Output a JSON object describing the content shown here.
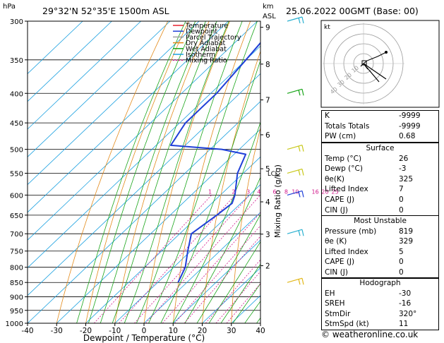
{
  "header": {
    "location": "29°32'N  52°35'E  1500m  ASL",
    "hpa_label": "hPa",
    "km_label": "km",
    "asl_label": "ASL",
    "datetime": "25.06.2022  00GMT  (Base: 00)"
  },
  "chart_data": {
    "type": "line",
    "title": "",
    "xlabel": "Dewpoint / Temperature (°C)",
    "ylabel": "hPa",
    "right_label": "Mixing Ratio (g/kg)",
    "x_ticks": [
      "-40",
      "-30",
      "-20",
      "-10",
      "0",
      "10",
      "20",
      "30",
      "40"
    ],
    "pressure_levels": [
      "300",
      "350",
      "400",
      "450",
      "500",
      "550",
      "600",
      "650",
      "700",
      "750",
      "800",
      "850",
      "900",
      "950",
      "1000"
    ],
    "height_km_labels": [
      "9",
      "8",
      "7",
      "6",
      "5",
      "4",
      "3",
      "2"
    ],
    "lcl_label": "LCL",
    "mixing_ratio_labels": [
      "1",
      "2",
      "3",
      "4",
      "6",
      "8",
      "10",
      "16",
      "20",
      "25"
    ],
    "legend": [
      {
        "name": "Temperature",
        "color": "#e8212e"
      },
      {
        "name": "Dewpoint",
        "color": "#1f3fd8"
      },
      {
        "name": "Parcel Trajectory",
        "color": "#a0a0a0"
      },
      {
        "name": "Dry Adiabat",
        "color": "#e28a1a"
      },
      {
        "name": "Wet Adiabat",
        "color": "#1aa51a"
      },
      {
        "name": "Isotherm",
        "color": "#1aa0e0"
      },
      {
        "name": "Mixing Ratio",
        "color": "#d1158a"
      }
    ],
    "series": [
      {
        "name": "Temperature",
        "color": "#e8212e",
        "points": [
          [
            820,
            33.5
          ],
          [
            850,
            32
          ],
          [
            800,
            30
          ],
          [
            750,
            25.5
          ],
          [
            700,
            21
          ],
          [
            650,
            17
          ],
          [
            600,
            12.5
          ],
          [
            550,
            8
          ],
          [
            500,
            3
          ],
          [
            475,
            6
          ],
          [
            450,
            4
          ],
          [
            425,
            0
          ],
          [
            400,
            -2.5
          ],
          [
            375,
            -6
          ],
          [
            360,
            -7
          ]
        ]
      },
      {
        "name": "Dewpoint",
        "color": "#1f3fd8",
        "points": [
          [
            850,
            -3
          ],
          [
            800,
            -6
          ],
          [
            750,
            -11
          ],
          [
            700,
            -16
          ],
          [
            650,
            -14
          ],
          [
            620,
            -13
          ],
          [
            600,
            -15
          ],
          [
            550,
            -22
          ],
          [
            510,
            -26
          ],
          [
            500,
            -36
          ],
          [
            492,
            -55
          ],
          [
            450,
            -58
          ],
          [
            400,
            -58
          ],
          [
            350,
            -60
          ],
          [
            310,
            -62
          ],
          [
            300,
            -62
          ]
        ]
      },
      {
        "name": "Parcel Trajectory",
        "color": "#a0a0a0",
        "points": [
          [
            819,
            30
          ],
          [
            750,
            24
          ],
          [
            700,
            19
          ],
          [
            650,
            14.5
          ],
          [
            600,
            9.5
          ],
          [
            550,
            4.5
          ],
          [
            500,
            -1
          ],
          [
            450,
            -6.5
          ],
          [
            400,
            -12.5
          ],
          [
            350,
            -19.5
          ],
          [
            300,
            -27
          ]
        ]
      }
    ],
    "xlim": [
      -40,
      40
    ],
    "ylim": [
      1000,
      300
    ]
  },
  "hodograph": {
    "label": "kt",
    "ring_labels": [
      "10",
      "20",
      "30",
      "40"
    ],
    "color_wind": "#000000"
  },
  "indices": [
    {
      "label": "K",
      "value": "-9999"
    },
    {
      "label": "Totals Totals",
      "value": "-9999"
    },
    {
      "label": "PW (cm)",
      "value": "0.68"
    }
  ],
  "surface": {
    "title": "Surface",
    "rows": [
      {
        "label": "Temp (°C)",
        "value": "26"
      },
      {
        "label": "Dewp (°C)",
        "value": "-3"
      },
      {
        "label": "θe(K)",
        "value": "325"
      },
      {
        "label": "Lifted Index",
        "value": "7"
      },
      {
        "label": "CAPE (J)",
        "value": "0"
      },
      {
        "label": "CIN (J)",
        "value": "0"
      }
    ]
  },
  "most_unstable": {
    "title": "Most Unstable",
    "rows": [
      {
        "label": "Pressure (mb)",
        "value": "819"
      },
      {
        "label": "θe (K)",
        "value": "329"
      },
      {
        "label": "Lifted Index",
        "value": "5"
      },
      {
        "label": "CAPE (J)",
        "value": "0"
      },
      {
        "label": "CIN (J)",
        "value": "0"
      }
    ]
  },
  "hodo_table": {
    "title": "Hodograph",
    "rows": [
      {
        "label": "EH",
        "value": "-30"
      },
      {
        "label": "SREH",
        "value": "-16"
      },
      {
        "label": "StmDir",
        "value": "320°"
      },
      {
        "label": "StmSpd (kt)",
        "value": "11"
      }
    ]
  },
  "credit": "© weatheronline.co.uk"
}
